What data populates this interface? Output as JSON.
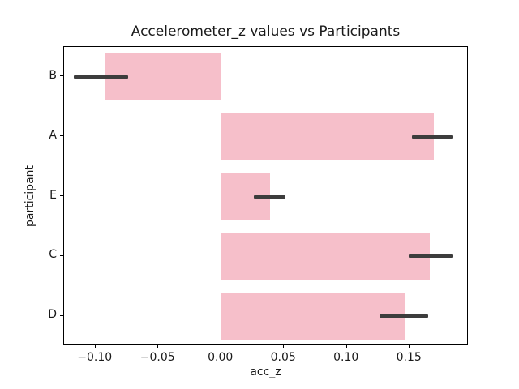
{
  "chart_data": {
    "type": "bar",
    "orientation": "horizontal",
    "title": "Accelerometer_z values vs Participants",
    "xlabel": "acc_z",
    "ylabel": "participant",
    "categories": [
      "B",
      "A",
      "E",
      "C",
      "D"
    ],
    "values": [
      -0.093,
      0.169,
      0.039,
      0.166,
      0.146
    ],
    "error_low": [
      -0.117,
      0.152,
      0.026,
      0.149,
      0.126
    ],
    "error_high": [
      -0.074,
      0.184,
      0.051,
      0.184,
      0.165
    ],
    "xlim": [
      -0.125,
      0.197
    ],
    "x_ticks": [
      -0.1,
      -0.05,
      0.0,
      0.05,
      0.1,
      0.15
    ],
    "x_tick_labels": [
      "−0.10",
      "−0.05",
      "0.00",
      "0.05",
      "0.10",
      "0.15"
    ],
    "grid": false,
    "legend": null,
    "bar_color": "#f6bfca",
    "error_bar_color": "#3d3d3d",
    "background_color": "#ffffff"
  }
}
